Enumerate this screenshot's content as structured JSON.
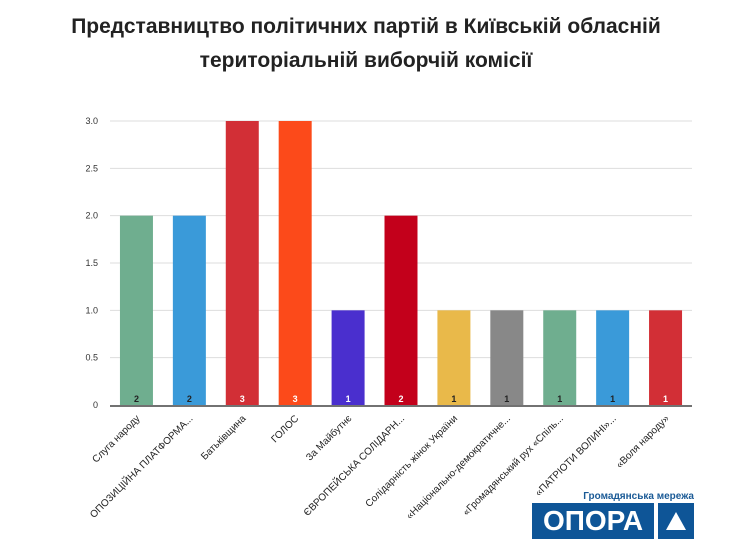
{
  "chart_data": {
    "type": "bar",
    "title": "Представництво політичних партій в Київській обласній територіальній виборчій комісії",
    "categories": [
      "Слуга народу",
      "ОПОЗИЦІЙНА ПЛАТФОРМА...",
      "Батьківщина",
      "ГОЛОС",
      "За Майбутнє",
      "ЄВРОПЕЙСЬКА СОЛІДАРН...",
      "Солідарність жінок України",
      "«Національно-демократичне...",
      "«Громадянський рух «Спіль...",
      "«ПАТРІОТИ ВОЛИНІ»...",
      "«Воля народу»"
    ],
    "values": [
      2,
      2,
      3,
      3,
      1,
      2,
      1,
      1,
      1,
      1,
      1
    ],
    "colors": [
      "#6fae8f",
      "#3a9ad9",
      "#d22f36",
      "#fc4a1a",
      "#4a2fce",
      "#c3001b",
      "#e9b94a",
      "#888888",
      "#6fae8f",
      "#3a9ad9",
      "#d22f36"
    ],
    "yticks": [
      "0",
      "0.5",
      "1.0",
      "1.5",
      "2.0",
      "2.5",
      "3.0"
    ],
    "ylim": [
      0,
      3
    ],
    "xlabel": "",
    "ylabel": "",
    "grid": true
  },
  "logo": {
    "subtitle": "Громадянська мережа",
    "name": "ОПОРА"
  }
}
